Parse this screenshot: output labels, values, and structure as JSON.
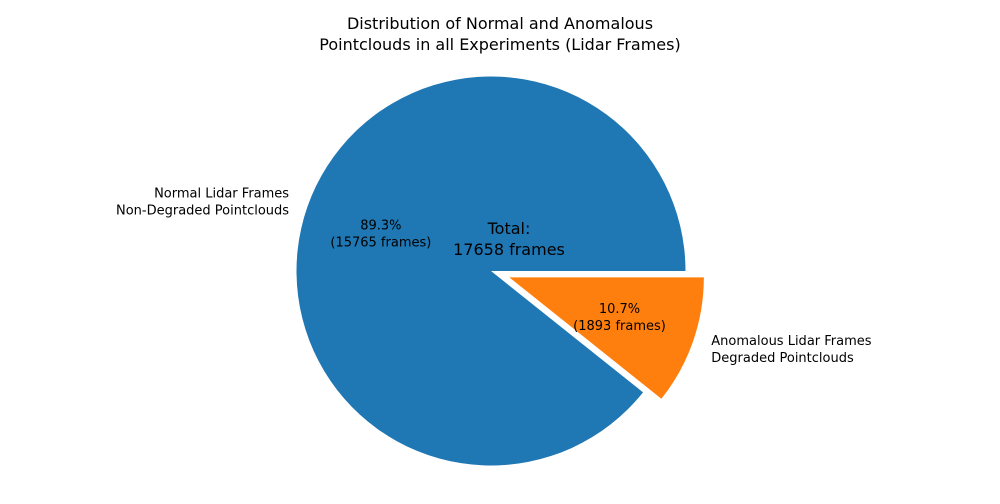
{
  "chart_data": {
    "type": "pie",
    "title_lines": [
      "Distribution of Normal and Anomalous",
      "Pointclouds in all Experiments (Lidar Frames)"
    ],
    "center_text_lines": [
      "Total:",
      "17658 frames"
    ],
    "slices": [
      {
        "label_lines": [
          "Normal Lidar Frames",
          "Non-Degraded Pointclouds"
        ],
        "value": 15765,
        "percent_label": "89.3%",
        "count_label": "(15765 frames)",
        "color": "#1f77b4",
        "explode": 0
      },
      {
        "label_lines": [
          "Anomalous Lidar Frames",
          "Degraded Pointclouds"
        ],
        "value": 1893,
        "percent_label": "10.7%",
        "count_label": "(1893 frames)",
        "color": "#ff7f0e",
        "explode": 0.1
      }
    ],
    "start_angle": 0,
    "direction": "counterclockwise"
  }
}
